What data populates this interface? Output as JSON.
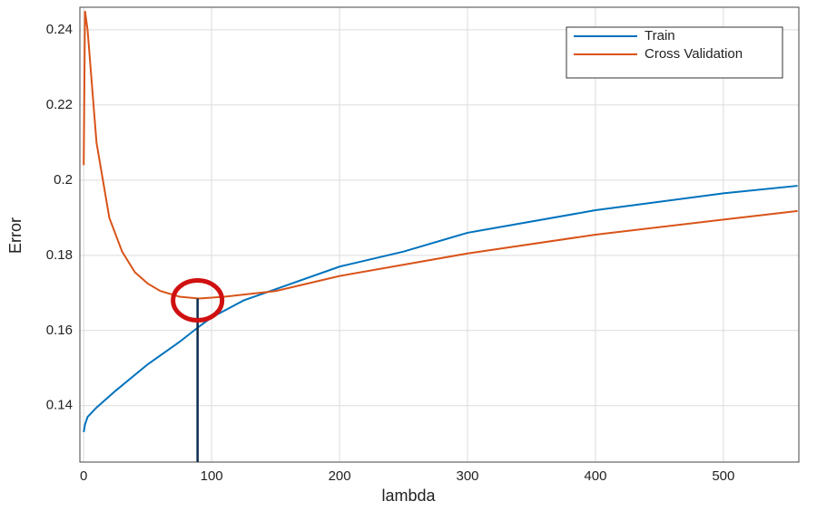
{
  "chart_data": {
    "type": "line",
    "xlabel": "lambda",
    "ylabel": "Error",
    "series": [
      {
        "name": "Train",
        "color": "#0072bd",
        "x": [
          0,
          1,
          3,
          10,
          25,
          50,
          75,
          90,
          100,
          125,
          150,
          200,
          250,
          300,
          400,
          500,
          558
        ],
        "values": [
          0.133,
          0.135,
          0.137,
          0.1395,
          0.144,
          0.151,
          0.157,
          0.161,
          0.1635,
          0.168,
          0.171,
          0.177,
          0.181,
          0.186,
          0.192,
          0.1965,
          0.1985
        ]
      },
      {
        "name": "Cross Validation",
        "color": "#d95319",
        "x": [
          0,
          1,
          3,
          10,
          20,
          30,
          40,
          50,
          60,
          75,
          90,
          110,
          150,
          200,
          300,
          400,
          500,
          558
        ],
        "values": [
          0.204,
          0.245,
          0.24,
          0.21,
          0.19,
          0.181,
          0.1755,
          0.1725,
          0.1705,
          0.169,
          0.1685,
          0.169,
          0.1705,
          0.1745,
          0.1805,
          0.1855,
          0.1895,
          0.1918
        ]
      }
    ],
    "highlight": {
      "x": 89,
      "y": 0.1685
    },
    "xlim": [
      -3,
      559
    ],
    "ylim": [
      0.125,
      0.246
    ],
    "xticks": [
      0,
      100,
      200,
      300,
      400,
      500
    ],
    "yticks": [
      0.14,
      0.16,
      0.18,
      0.2,
      0.22,
      0.24
    ],
    "grid": true,
    "legend": "northeast"
  }
}
